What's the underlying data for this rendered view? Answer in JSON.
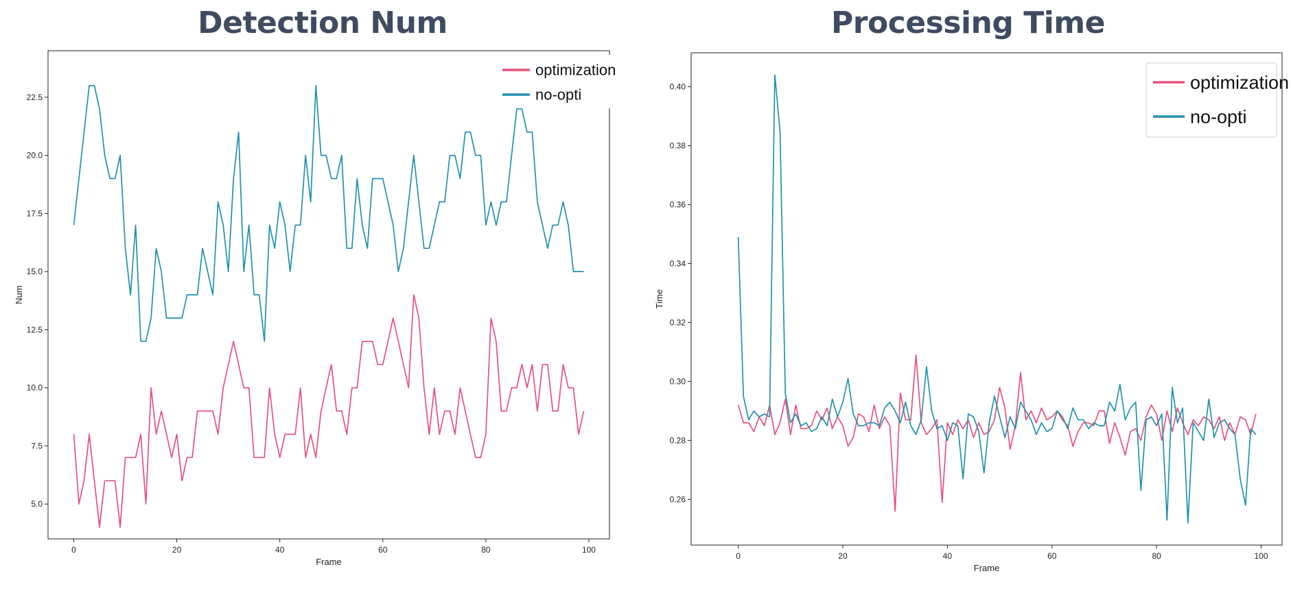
{
  "colors": {
    "optimization": "#e7517a",
    "no_opti": "#2190ad",
    "title": "#3f4b60"
  },
  "chart_data": [
    {
      "type": "line",
      "title": "Detection Num",
      "xlabel": "Frame",
      "ylabel": "Num",
      "xlim": [
        -5,
        104
      ],
      "ylim": [
        3.5,
        24.5
      ],
      "xticks": [
        0,
        20,
        40,
        60,
        80,
        100
      ],
      "xtick_labels": [
        "0",
        "20",
        "40",
        "60",
        "80",
        "100"
      ],
      "yticks": [
        5.0,
        7.5,
        10.0,
        12.5,
        15.0,
        17.5,
        20.0,
        22.5
      ],
      "ytick_labels": [
        "5.0",
        "7.5",
        "10.0",
        "12.5",
        "15.0",
        "17.5",
        "20.0",
        "22.5"
      ],
      "legend": "top-right",
      "series": [
        {
          "name": "optimization",
          "color": "#e7517a",
          "values": [
            8,
            5,
            6,
            8,
            6,
            4,
            6,
            6,
            6,
            4,
            7,
            7,
            7,
            8,
            5,
            10,
            8,
            9,
            8,
            7,
            8,
            6,
            7,
            7,
            9,
            9,
            9,
            9,
            8,
            10,
            11,
            12,
            11,
            10,
            10,
            7,
            7,
            7,
            10,
            8,
            7,
            8,
            8,
            8,
            10,
            7,
            8,
            7,
            9,
            10,
            11,
            9,
            9,
            8,
            10,
            10,
            12,
            12,
            12,
            11,
            11,
            12,
            13,
            12,
            11,
            10,
            14,
            13,
            10,
            8,
            10,
            8,
            9,
            9,
            8,
            10,
            9,
            8,
            7,
            7,
            8,
            13,
            12,
            9,
            9,
            10,
            10,
            11,
            10,
            11,
            9,
            11,
            11,
            9,
            9,
            11,
            10,
            10,
            8,
            9
          ]
        },
        {
          "name": "no-opti",
          "color": "#2190ad",
          "values": [
            17,
            19,
            21,
            23,
            23,
            22,
            20,
            19,
            19,
            20,
            16,
            14,
            17,
            12,
            12,
            13,
            16,
            15,
            13,
            13,
            13,
            13,
            14,
            14,
            14,
            16,
            15,
            14,
            18,
            17,
            15,
            19,
            21,
            15,
            17,
            14,
            14,
            12,
            17,
            16,
            18,
            17,
            15,
            17,
            17,
            20,
            18,
            23,
            20,
            20,
            19,
            19,
            20,
            16,
            16,
            19,
            17,
            16,
            19,
            19,
            19,
            18,
            17,
            15,
            16,
            18,
            20,
            18,
            16,
            16,
            17,
            18,
            18,
            20,
            20,
            19,
            21,
            21,
            20,
            20,
            17,
            18,
            17,
            18,
            18,
            20,
            22,
            22,
            21,
            21,
            18,
            17,
            16,
            17,
            17,
            18,
            17,
            15,
            15,
            15
          ]
        }
      ]
    },
    {
      "type": "line",
      "title": "Processing Time",
      "xlabel": "Frame",
      "ylabel": "Time",
      "xlim": [
        -9,
        104
      ],
      "ylim": [
        0.2445,
        0.4115
      ],
      "xticks": [
        0,
        20,
        40,
        60,
        80,
        100
      ],
      "xtick_labels": [
        "0",
        "20",
        "40",
        "60",
        "80",
        "100"
      ],
      "yticks": [
        0.26,
        0.28,
        0.3,
        0.32,
        0.34,
        0.36,
        0.38,
        0.4
      ],
      "ytick_labels": [
        "0.26",
        "0.28",
        "0.30",
        "0.32",
        "0.34",
        "0.36",
        "0.38",
        "0.40"
      ],
      "legend": "top-right",
      "series": [
        {
          "name": "optimization",
          "color": "#e7517a",
          "values": [
            0.292,
            0.286,
            0.286,
            0.283,
            0.288,
            0.285,
            0.292,
            0.282,
            0.286,
            0.294,
            0.282,
            0.292,
            0.284,
            0.284,
            0.285,
            0.29,
            0.287,
            0.291,
            0.284,
            0.288,
            0.285,
            0.278,
            0.281,
            0.289,
            0.288,
            0.283,
            0.292,
            0.284,
            0.288,
            0.285,
            0.256,
            0.296,
            0.287,
            0.287,
            0.309,
            0.286,
            0.282,
            0.284,
            0.287,
            0.259,
            0.286,
            0.282,
            0.287,
            0.284,
            0.287,
            0.281,
            0.286,
            0.282,
            0.283,
            0.287,
            0.298,
            0.291,
            0.277,
            0.285,
            0.303,
            0.287,
            0.29,
            0.286,
            0.291,
            0.287,
            0.288,
            0.29,
            0.287,
            0.285,
            0.278,
            0.283,
            0.286,
            0.286,
            0.285,
            0.29,
            0.29,
            0.279,
            0.286,
            0.281,
            0.275,
            0.283,
            0.284,
            0.28,
            0.288,
            0.292,
            0.289,
            0.28,
            0.29,
            0.283,
            0.291,
            0.286,
            0.282,
            0.287,
            0.285,
            0.288,
            0.287,
            0.284,
            0.288,
            0.28,
            0.286,
            0.282,
            0.288,
            0.287,
            0.282,
            0.289
          ]
        },
        {
          "name": "no-opti",
          "color": "#2190ad",
          "values": [
            0.349,
            0.295,
            0.287,
            0.29,
            0.288,
            0.289,
            0.288,
            0.404,
            0.385,
            0.296,
            0.286,
            0.289,
            0.285,
            0.286,
            0.283,
            0.284,
            0.288,
            0.285,
            0.294,
            0.288,
            0.293,
            0.301,
            0.289,
            0.285,
            0.285,
            0.286,
            0.286,
            0.285,
            0.291,
            0.293,
            0.29,
            0.286,
            0.293,
            0.285,
            0.282,
            0.287,
            0.305,
            0.29,
            0.284,
            0.285,
            0.28,
            0.286,
            0.285,
            0.267,
            0.289,
            0.288,
            0.283,
            0.269,
            0.286,
            0.295,
            0.288,
            0.281,
            0.288,
            0.284,
            0.293,
            0.29,
            0.287,
            0.282,
            0.286,
            0.283,
            0.284,
            0.29,
            0.288,
            0.284,
            0.291,
            0.287,
            0.287,
            0.284,
            0.286,
            0.285,
            0.285,
            0.293,
            0.29,
            0.299,
            0.287,
            0.291,
            0.293,
            0.263,
            0.287,
            0.288,
            0.285,
            0.289,
            0.253,
            0.298,
            0.286,
            0.291,
            0.252,
            0.286,
            0.283,
            0.28,
            0.294,
            0.281,
            0.286,
            0.287,
            0.284,
            0.282,
            0.267,
            0.258,
            0.284,
            0.282
          ]
        }
      ]
    }
  ]
}
